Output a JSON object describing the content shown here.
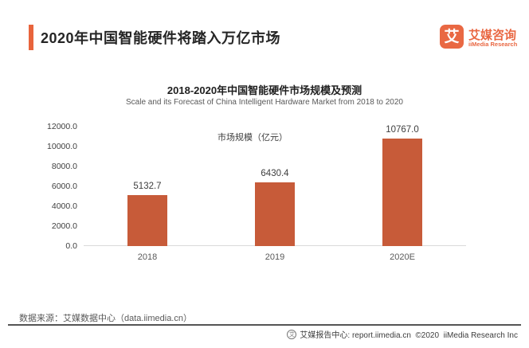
{
  "header": {
    "title": "2020年中国智能硬件将踏入万亿市场",
    "logo": {
      "glyph": "艾",
      "brand_cn": "艾媒咨询",
      "brand_en": "iiMedia Research"
    }
  },
  "chart_data": {
    "type": "bar",
    "title": "2018-2020年中国智能硬件市场规模及预测",
    "subtitle": "Scale and its Forecast of China Intelligent Hardware Market from 2018 to 2020",
    "legend": "市场规模（亿元）",
    "legend_position": "inside-top-center",
    "categories": [
      "2018",
      "2019",
      "2020E"
    ],
    "values": [
      5132.7,
      6430.4,
      10767.0
    ],
    "value_labels": [
      "5132.7",
      "6430.4",
      "10767.0"
    ],
    "xlabel": "",
    "ylabel": "",
    "ylim": [
      0,
      12000
    ],
    "ytick_step": 2000,
    "ytick_labels": [
      "0.0",
      "2000.0",
      "4000.0",
      "6000.0",
      "8000.0",
      "10000.0",
      "12000.0"
    ],
    "grid": false,
    "bar_color": "#C75B39"
  },
  "source": {
    "text": "数据来源：艾媒数据中心（data.iimedia.cn）"
  },
  "footer": {
    "icon_glyph": "艾",
    "text": "艾媒报告中心: report.iimedia.cn  ©2020  iiMedia Research Inc"
  },
  "colors": {
    "accent": "#E8643C",
    "bar": "#C75B39",
    "axis_line": "#D9D9D9"
  }
}
